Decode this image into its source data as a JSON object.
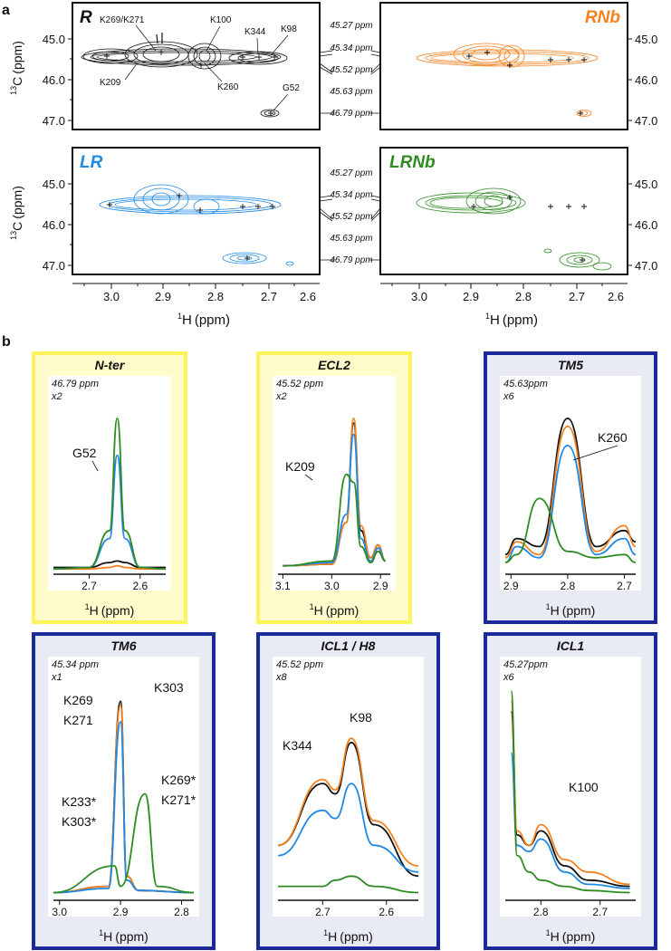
{
  "panel_labels": {
    "a": "a",
    "b": "b"
  },
  "colors": {
    "R": "#111111",
    "RNb": "#f5821f",
    "LR": "#1e88e5",
    "LRNb": "#2e8b22",
    "yellow_border": "#fff35c",
    "yellow_fill": "#fffccc",
    "blue_border": "#1a2a9a",
    "blue_fill": "#e8eaf4"
  },
  "spectra": {
    "titles": [
      "R",
      "RNb",
      "LR",
      "LRNb"
    ],
    "y_axis_label": "(ppm)",
    "y_axis_super": "13",
    "y_axis_element": "C",
    "x_axis_label": "(ppm)",
    "x_axis_super": "1",
    "x_axis_element": "H",
    "y_ticks": [
      "45.0",
      "46.0",
      "47.0"
    ],
    "x_ticks": [
      "3.0",
      "2.9",
      "2.8",
      "2.7",
      "2.6"
    ],
    "ppm_markers": [
      "45.27 ppm",
      "45.34 ppm",
      "45.52 ppm",
      "45.63 ppm",
      "46.79 ppm"
    ],
    "peak_labels": [
      "K269/K271",
      "K100",
      "K344",
      "K98",
      "K209",
      "K260",
      "G52"
    ]
  },
  "chart_data": [
    {
      "type": "line",
      "title": "N-ter",
      "ppm": "46.79 ppm",
      "scale": "x2",
      "xlabel_super": "1",
      "xlabel_element": "H",
      "xlabel": "(ppm)",
      "x_ticks": [
        "2.7",
        "2.6"
      ],
      "xlim": [
        2.77,
        2.55
      ],
      "annotations": [
        "G52"
      ],
      "series": [
        {
          "name": "R",
          "x": [
            2.77,
            2.7,
            2.66,
            2.645,
            2.63,
            2.6,
            2.55
          ],
          "y": [
            0.02,
            0.02,
            0.05,
            0.06,
            0.05,
            0.02,
            0.02
          ]
        },
        {
          "name": "RNb",
          "x": [
            2.77,
            2.7,
            2.66,
            2.645,
            2.63,
            2.6,
            2.55
          ],
          "y": [
            0.01,
            0.01,
            0.02,
            0.03,
            0.02,
            0.01,
            0.01
          ]
        },
        {
          "name": "LR",
          "x": [
            2.77,
            2.7,
            2.66,
            2.645,
            2.63,
            2.6,
            2.55
          ],
          "y": [
            0.01,
            0.02,
            0.2,
            0.72,
            0.2,
            0.02,
            0.01
          ]
        },
        {
          "name": "LRNb",
          "x": [
            2.77,
            2.7,
            2.66,
            2.645,
            2.63,
            2.6,
            2.55
          ],
          "y": [
            0.01,
            0.02,
            0.25,
            0.95,
            0.25,
            0.02,
            0.01
          ]
        }
      ]
    },
    {
      "type": "line",
      "title": "ECL2",
      "ppm": "45.52 ppm",
      "scale": "x2",
      "xlabel_super": "1",
      "xlabel_element": "H",
      "xlabel": "(ppm)",
      "x_ticks": [
        "3.1",
        "3.0",
        "2.9"
      ],
      "xlim": [
        3.11,
        2.88
      ],
      "annotations": [
        "K209"
      ],
      "series": [
        {
          "name": "R",
          "x": [
            3.1,
            3.0,
            2.97,
            2.955,
            2.94,
            2.92,
            2.905,
            2.89
          ],
          "y": [
            0.03,
            0.04,
            0.3,
            0.92,
            0.25,
            0.08,
            0.16,
            0.06
          ]
        },
        {
          "name": "RNb",
          "x": [
            3.1,
            3.0,
            2.97,
            2.955,
            2.94,
            2.92,
            2.905,
            2.89
          ],
          "y": [
            0.03,
            0.04,
            0.3,
            0.95,
            0.28,
            0.08,
            0.16,
            0.06
          ]
        },
        {
          "name": "LR",
          "x": [
            3.1,
            3.0,
            2.97,
            2.955,
            2.94,
            2.92,
            2.905,
            2.89
          ],
          "y": [
            0.03,
            0.05,
            0.35,
            0.85,
            0.2,
            0.06,
            0.14,
            0.06
          ]
        },
        {
          "name": "LRNb",
          "x": [
            3.1,
            3.0,
            2.97,
            2.955,
            2.94,
            2.92,
            2.905,
            2.89
          ],
          "y": [
            0.03,
            0.06,
            0.6,
            0.55,
            0.15,
            0.05,
            0.12,
            0.06
          ]
        }
      ]
    },
    {
      "type": "line",
      "title": "TM5",
      "ppm": "45.63ppm",
      "scale": "x6",
      "xlabel_super": "1",
      "xlabel_element": "H",
      "xlabel": "(ppm)",
      "x_ticks": [
        "2.9",
        "2.8",
        "2.7"
      ],
      "xlim": [
        2.91,
        2.68
      ],
      "annotations": [
        "K260"
      ],
      "series": [
        {
          "name": "R",
          "x": [
            2.91,
            2.89,
            2.85,
            2.8,
            2.75,
            2.7,
            2.68
          ],
          "y": [
            0.1,
            0.2,
            0.15,
            0.95,
            0.15,
            0.25,
            0.18
          ]
        },
        {
          "name": "RNb",
          "x": [
            2.91,
            2.89,
            2.85,
            2.8,
            2.75,
            2.7,
            2.68
          ],
          "y": [
            0.08,
            0.18,
            0.1,
            0.9,
            0.12,
            0.28,
            0.15
          ]
        },
        {
          "name": "LR",
          "x": [
            2.91,
            2.89,
            2.85,
            2.8,
            2.75,
            2.7,
            2.68
          ],
          "y": [
            0.05,
            0.15,
            0.08,
            0.78,
            0.1,
            0.2,
            0.1
          ]
        },
        {
          "name": "LRNb",
          "x": [
            2.91,
            2.89,
            2.85,
            2.8,
            2.75,
            2.7,
            2.68
          ],
          "y": [
            0.05,
            0.1,
            0.45,
            0.12,
            0.08,
            0.1,
            0.05
          ]
        }
      ]
    },
    {
      "type": "line",
      "title": "TM6",
      "ppm": "45.34 ppm",
      "scale": "x1",
      "xlabel_super": "1",
      "xlabel_element": "H",
      "xlabel": "(ppm)",
      "x_ticks": [
        "3.0",
        "2.9",
        "2.8"
      ],
      "xlim": [
        3.01,
        2.78
      ],
      "annotations": [
        "K269",
        "K271",
        "K303",
        "K233*",
        "K303*",
        "K269*",
        "K271*"
      ],
      "series": [
        {
          "name": "R",
          "x": [
            3.01,
            2.92,
            2.9,
            2.89,
            2.87,
            2.78
          ],
          "y": [
            0.02,
            0.05,
            0.95,
            0.1,
            0.03,
            0.02
          ]
        },
        {
          "name": "RNb",
          "x": [
            3.01,
            2.92,
            2.9,
            2.89,
            2.87,
            2.78
          ],
          "y": [
            0.02,
            0.05,
            0.93,
            0.1,
            0.03,
            0.02
          ]
        },
        {
          "name": "LR",
          "x": [
            3.01,
            2.92,
            2.9,
            2.89,
            2.87,
            2.78
          ],
          "y": [
            0.02,
            0.04,
            0.85,
            0.08,
            0.03,
            0.02
          ]
        },
        {
          "name": "LRNb",
          "x": [
            3.01,
            2.91,
            2.9,
            2.86,
            2.84,
            2.78
          ],
          "y": [
            0.02,
            0.15,
            0.05,
            0.5,
            0.05,
            0.02
          ]
        }
      ]
    },
    {
      "type": "line",
      "title": "ICL1 / H8",
      "ppm": "45.52 ppm",
      "scale": "x8",
      "xlabel_super": "1",
      "xlabel_element": "H",
      "xlabel": "(ppm)",
      "x_ticks": [
        "2.7",
        "2.6"
      ],
      "xlim": [
        2.77,
        2.55
      ],
      "annotations": [
        "K344",
        "K98"
      ],
      "series": [
        {
          "name": "R",
          "x": [
            2.77,
            2.7,
            2.68,
            2.655,
            2.62,
            2.55
          ],
          "y": [
            0.25,
            0.55,
            0.5,
            0.75,
            0.35,
            0.1
          ]
        },
        {
          "name": "RNb",
          "x": [
            2.77,
            2.7,
            2.68,
            2.655,
            2.62,
            2.55
          ],
          "y": [
            0.25,
            0.57,
            0.52,
            0.77,
            0.37,
            0.15
          ]
        },
        {
          "name": "LR",
          "x": [
            2.77,
            2.7,
            2.68,
            2.655,
            2.62,
            2.55
          ],
          "y": [
            0.2,
            0.42,
            0.38,
            0.55,
            0.25,
            0.12
          ]
        },
        {
          "name": "LRNb",
          "x": [
            2.77,
            2.7,
            2.68,
            2.655,
            2.62,
            2.55
          ],
          "y": [
            0.05,
            0.05,
            0.08,
            0.1,
            0.05,
            0.02
          ]
        }
      ]
    },
    {
      "type": "line",
      "title": "ICL1",
      "ppm": "45.27ppm",
      "scale": "x6",
      "xlabel_super": "1",
      "xlabel_element": "H",
      "xlabel": "(ppm)",
      "x_ticks": [
        "2.8",
        "2.7"
      ],
      "xlim": [
        2.86,
        2.64
      ],
      "annotations": [
        "K100"
      ],
      "series": [
        {
          "name": "R",
          "x": [
            2.85,
            2.84,
            2.82,
            2.8,
            2.76,
            2.72,
            2.65
          ],
          "y": [
            0.9,
            0.3,
            0.25,
            0.32,
            0.15,
            0.08,
            0.05
          ]
        },
        {
          "name": "RNb",
          "x": [
            2.85,
            2.84,
            2.82,
            2.8,
            2.76,
            2.72,
            2.65
          ],
          "y": [
            0.95,
            0.32,
            0.25,
            0.35,
            0.18,
            0.12,
            0.06
          ]
        },
        {
          "name": "LR",
          "x": [
            2.85,
            2.84,
            2.82,
            2.8,
            2.76,
            2.72,
            2.65
          ],
          "y": [
            0.7,
            0.25,
            0.22,
            0.28,
            0.12,
            0.06,
            0.04
          ]
        },
        {
          "name": "LRNb",
          "x": [
            2.85,
            2.84,
            2.82,
            2.8,
            2.76,
            2.72,
            2.65
          ],
          "y": [
            1.0,
            0.2,
            0.12,
            0.08,
            0.05,
            0.03,
            0.02
          ]
        }
      ]
    }
  ]
}
